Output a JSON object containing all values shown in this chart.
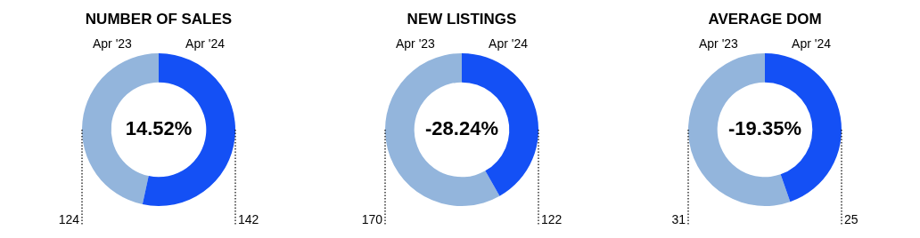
{
  "chart_data": [
    {
      "type": "donut",
      "title": "NUMBER OF SALES",
      "categories": [
        "Apr '23",
        "Apr '24"
      ],
      "values": [
        124,
        142
      ],
      "colors": [
        "#93b5dc",
        "#1450f5"
      ],
      "data_labels": true,
      "annotations": [
        "14.52%"
      ]
    },
    {
      "type": "donut",
      "title": "NEW LISTINGS",
      "categories": [
        "Apr '23",
        "Apr '24"
      ],
      "values": [
        170,
        122
      ],
      "colors": [
        "#93b5dc",
        "#1450f5"
      ],
      "data_labels": true,
      "annotations": [
        "-28.24%"
      ]
    },
    {
      "type": "donut",
      "title": "AVERAGE DOM",
      "categories": [
        "Apr '23",
        "Apr '24"
      ],
      "values": [
        31,
        25
      ],
      "colors": [
        "#93b5dc",
        "#1450f5"
      ],
      "data_labels": true,
      "annotations": [
        "-19.35%"
      ]
    }
  ]
}
